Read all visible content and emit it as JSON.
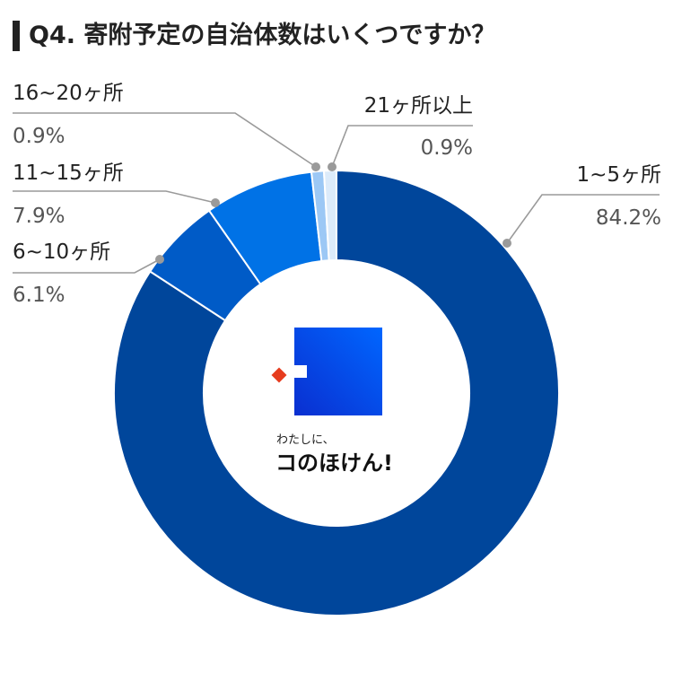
{
  "title": "Q4. 寄附予定の自治体数はいくつですか？",
  "chart_data": {
    "type": "donut",
    "title": "Q4. 寄附予定の自治体数はいくつですか？",
    "categories": [
      "1~5ヶ所",
      "6~10ヶ所",
      "11~15ヶ所",
      "16~20ヶ所",
      "21ヶ所以上"
    ],
    "values": [
      84.2,
      6.1,
      7.9,
      0.9,
      0.9
    ],
    "value_labels": [
      "84.2%",
      "6.1%",
      "7.9%",
      "0.9%",
      "0.9%"
    ],
    "unit": "%",
    "colors": [
      "#00469b",
      "#005bc7",
      "#0072e6",
      "#9cc8f5",
      "#dcebfa"
    ]
  },
  "slices": [
    {
      "label": "1~5ヶ所",
      "value_label": "84.2%"
    },
    {
      "label": "6~10ヶ所",
      "value_label": "6.1%"
    },
    {
      "label": "11~15ヶ所",
      "value_label": "7.9%"
    },
    {
      "label": "16~20ヶ所",
      "value_label": "0.9%"
    },
    {
      "label": "21ヶ所以上",
      "value_label": "0.9%"
    }
  ],
  "logo": {
    "caption": "わたしに、",
    "name": "コのほけん!",
    "colors": {
      "square": "#0050e0",
      "accent": "#e63c1e"
    }
  }
}
